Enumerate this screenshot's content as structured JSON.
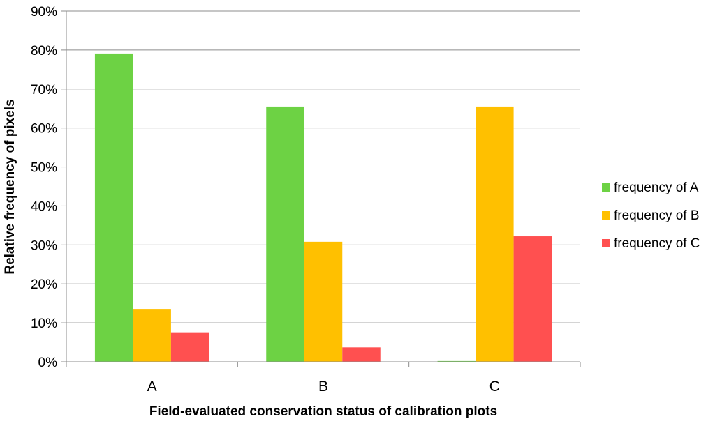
{
  "chart_data": {
    "type": "bar",
    "categories": [
      "A",
      "B",
      "C"
    ],
    "series": [
      {
        "name": "frequency of A",
        "values": [
          79.1,
          65.5,
          0.2
        ],
        "color": "#6dd244"
      },
      {
        "name": "frequency of B",
        "values": [
          13.4,
          30.8,
          65.5
        ],
        "color": "#ffc000"
      },
      {
        "name": "frequency of C",
        "values": [
          7.4,
          3.7,
          32.2
        ],
        "color": "#ff5050"
      }
    ],
    "xlabel": "Field-evaluated conservation status of calibration plots",
    "ylabel": "Relative frequency of pixels",
    "ylim": [
      0,
      90
    ],
    "y_ticks": [
      0,
      10,
      20,
      30,
      40,
      50,
      60,
      70,
      80,
      90
    ],
    "y_tick_labels": [
      "0%",
      "10%",
      "20%",
      "30%",
      "40%",
      "50%",
      "60%",
      "70%",
      "80%",
      "90%"
    ],
    "grid": true,
    "legend_position": "right",
    "colors": {
      "grid": "#8c8c8c",
      "axis": "#8c8c8c"
    }
  }
}
